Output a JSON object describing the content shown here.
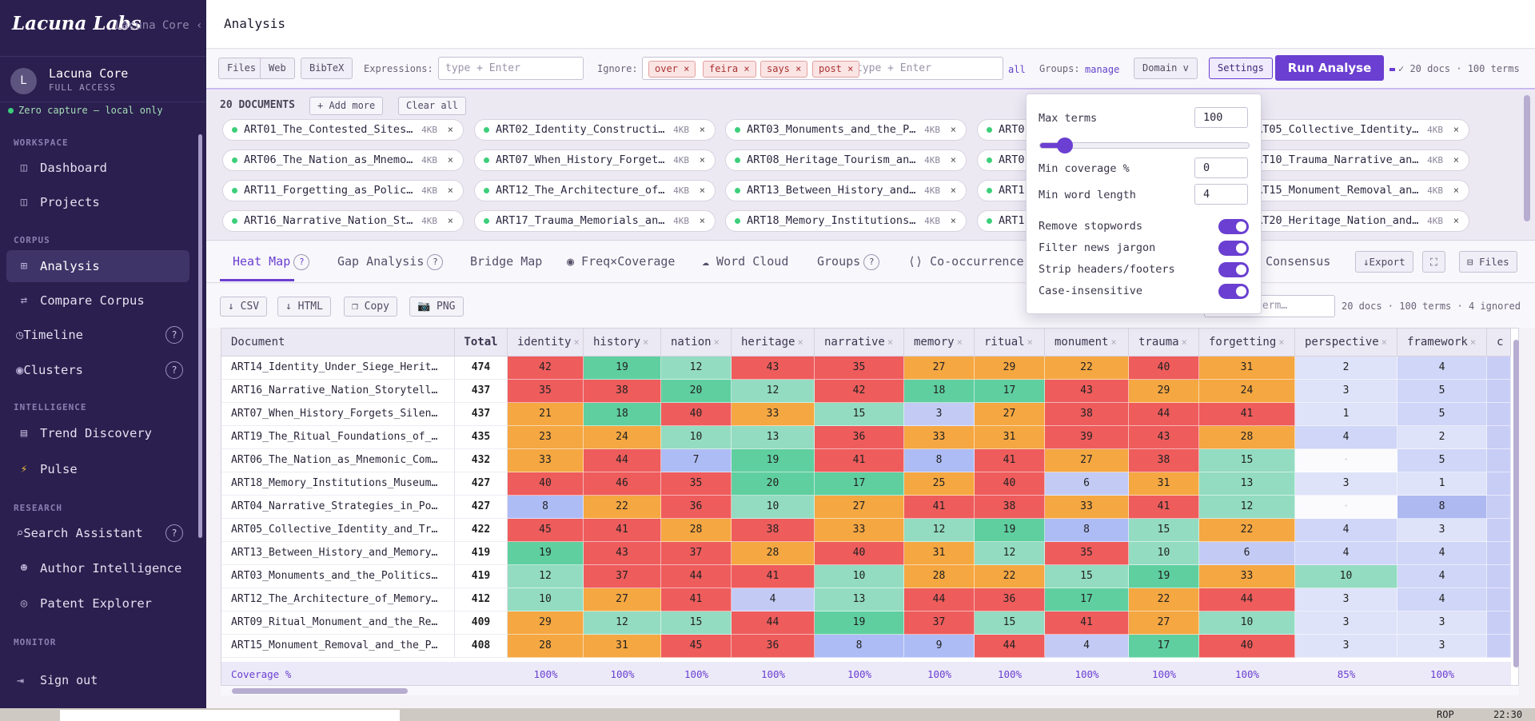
{
  "app": {
    "brand": "Lacuna Labs",
    "brand_sub": "Lacuna Core ‹",
    "user_name": "Lacuna Core",
    "user_initial": "L",
    "user_role": "FULL ACCESS",
    "privacy": "Zero capture — local only"
  },
  "sidebar": {
    "sections": [
      {
        "label": "WORKSPACE"
      },
      {
        "label": "CORPUS"
      },
      {
        "label": "INTELLIGENCE"
      },
      {
        "label": "RESEARCH"
      },
      {
        "label": "MONITOR"
      }
    ],
    "items": [
      {
        "label": "Dashboard",
        "icon": "layout-icon"
      },
      {
        "label": "Projects",
        "icon": "layout-icon"
      },
      {
        "label": "Analysis",
        "icon": "grid-icon"
      },
      {
        "label": "Compare Corpus",
        "icon": "swap-icon"
      },
      {
        "label": "Timeline",
        "icon": "clock-icon"
      },
      {
        "label": "Clusters",
        "icon": "cluster-icon"
      },
      {
        "label": "Trend Discovery",
        "icon": "chart-icon"
      },
      {
        "label": "Pulse",
        "icon": "bolt-icon"
      },
      {
        "label": "Search Assistant",
        "icon": "search-icon"
      },
      {
        "label": "Author Intelligence",
        "icon": "person-icon"
      },
      {
        "label": "Patent Explorer",
        "icon": "target-icon"
      }
    ],
    "signout": "Sign out",
    "help": "?"
  },
  "header": {
    "title": "Analysis"
  },
  "toolbar": {
    "files": "Files",
    "web": "Web",
    "bibtex": "BibTeX",
    "expressions_label": "Expressions:",
    "expressions_placeholder": "type + Enter",
    "ignore_label": "Ignore:",
    "ignore_chips": [
      "over ×",
      "feira ×",
      "says ×",
      "post ×"
    ],
    "ignore_placeholder": "type + Enter",
    "all": "all",
    "groups_label": "Groups:",
    "groups_link": "manage",
    "domain": "Domain v",
    "settings": "Settings",
    "run": "Run Analyse",
    "status": "✓ 20 docs · 100 terms"
  },
  "documents": {
    "count_label": "20 DOCUMENTS",
    "add_more": "+ Add more",
    "clear_all": "Clear all",
    "size": "4KB",
    "close": "×",
    "items": [
      "ART01_The_Contested_Sites…",
      "ART02_Identity_Constructi…",
      "ART03_Monuments_and_the_P…",
      "ART0",
      "ART05_Collective_Identity…",
      "ART06_The_Nation_as_Mnemo…",
      "ART07_When_History_Forget…",
      "ART08_Heritage_Tourism_an…",
      "ART0",
      "ART10_Trauma_Narrative_an…",
      "ART11_Forgetting_as_Polic…",
      "ART12_The_Architecture_of…",
      "ART13_Between_History_and…",
      "ART1",
      "ART15_Monument_Removal_an…",
      "ART16_Narrative_Nation_St…",
      "ART17_Trauma_Memorials_an…",
      "ART18_Memory_Institutions…",
      "ART1",
      "ART20_Heritage_Nation_and…"
    ]
  },
  "tabs": [
    {
      "label": "Heat Map",
      "help": "?"
    },
    {
      "label": "Gap Analysis",
      "help": "?"
    },
    {
      "label": "Bridge Map"
    },
    {
      "label": "◉ Freq×Coverage"
    },
    {
      "label": "☁ Word Cloud"
    },
    {
      "label": "Groups",
      "help": "?"
    },
    {
      "label": "⟨⟩ Co-occurrence"
    },
    {
      "label": "Consensus"
    }
  ],
  "tab_actions": {
    "export": "↓Export",
    "fullscreen": "⛶",
    "files": "⊟ Files"
  },
  "export_bar": {
    "csv": "↓ CSV",
    "html": "↓ HTML",
    "copy": "❐ Copy",
    "png": "📷 PNG",
    "search_placeholder": "term…",
    "summary": "20 docs · 100 terms · 4 ignored"
  },
  "settings_popup": {
    "max_terms_label": "Max terms",
    "max_terms": "100",
    "slider_fraction": 0.12,
    "min_coverage_label": "Min coverage %",
    "min_coverage": "0",
    "min_word_label": "Min word length",
    "min_word": "4",
    "toggles": [
      {
        "label": "Remove stopwords",
        "on": true
      },
      {
        "label": "Filter news jargon",
        "on": true
      },
      {
        "label": "Strip headers/footers",
        "on": true
      },
      {
        "label": "Case-insensitive",
        "on": true
      }
    ]
  },
  "heatmap": {
    "doc_header": "Document",
    "total_header": "Total",
    "coverage_label": "Coverage %",
    "remove": "×",
    "columns": [
      "identity",
      "history",
      "nation",
      "heritage",
      "narrative",
      "memory",
      "ritual",
      "monument",
      "trauma",
      "forgetting",
      "perspective",
      "framework",
      "c"
    ],
    "coverage": [
      "100%",
      "100%",
      "100%",
      "100%",
      "100%",
      "100%",
      "100%",
      "100%",
      "100%",
      "100%",
      "85%",
      "100%",
      ""
    ],
    "rows": [
      {
        "doc": "ART14_Identity_Under_Siege_Herit…",
        "total": "474",
        "v": [
          "42",
          "19",
          "12",
          "43",
          "35",
          "27",
          "29",
          "22",
          "40",
          "31",
          "2",
          "4",
          ""
        ]
      },
      {
        "doc": "ART16_Narrative_Nation_Storytell…",
        "total": "437",
        "v": [
          "35",
          "38",
          "20",
          "12",
          "42",
          "18",
          "17",
          "43",
          "29",
          "24",
          "3",
          "5",
          ""
        ]
      },
      {
        "doc": "ART07_When_History_Forgets_Silen…",
        "total": "437",
        "v": [
          "21",
          "18",
          "40",
          "33",
          "15",
          "3",
          "27",
          "38",
          "44",
          "41",
          "1",
          "5",
          ""
        ]
      },
      {
        "doc": "ART19_The_Ritual_Foundations_of_…",
        "total": "435",
        "v": [
          "23",
          "24",
          "10",
          "13",
          "36",
          "33",
          "31",
          "39",
          "43",
          "28",
          "4",
          "2",
          ""
        ]
      },
      {
        "doc": "ART06_The_Nation_as_Mnemonic_Com…",
        "total": "432",
        "v": [
          "33",
          "44",
          "7",
          "19",
          "41",
          "8",
          "41",
          "27",
          "38",
          "15",
          "·",
          "5",
          ""
        ]
      },
      {
        "doc": "ART18_Memory_Institutions_Museum…",
        "total": "427",
        "v": [
          "40",
          "46",
          "35",
          "20",
          "17",
          "25",
          "40",
          "6",
          "31",
          "13",
          "3",
          "1",
          ""
        ]
      },
      {
        "doc": "ART04_Narrative_Strategies_in_Po…",
        "total": "427",
        "v": [
          "8",
          "22",
          "36",
          "10",
          "27",
          "41",
          "38",
          "33",
          "41",
          "12",
          "·",
          "8",
          ""
        ]
      },
      {
        "doc": "ART05_Collective_Identity_and_Tr…",
        "total": "422",
        "v": [
          "45",
          "41",
          "28",
          "38",
          "33",
          "12",
          "19",
          "8",
          "15",
          "22",
          "4",
          "3",
          ""
        ]
      },
      {
        "doc": "ART13_Between_History_and_Memory…",
        "total": "419",
        "v": [
          "19",
          "43",
          "37",
          "28",
          "40",
          "31",
          "12",
          "35",
          "10",
          "6",
          "4",
          "4",
          ""
        ]
      },
      {
        "doc": "ART03_Monuments_and_the_Politics…",
        "total": "419",
        "v": [
          "12",
          "37",
          "44",
          "41",
          "10",
          "28",
          "22",
          "15",
          "19",
          "33",
          "10",
          "4",
          ""
        ]
      },
      {
        "doc": "ART12_The_Architecture_of_Memory…",
        "total": "412",
        "v": [
          "10",
          "27",
          "41",
          "4",
          "13",
          "44",
          "36",
          "17",
          "22",
          "44",
          "3",
          "4",
          ""
        ]
      },
      {
        "doc": "ART09_Ritual_Monument_and_the_Re…",
        "total": "409",
        "v": [
          "29",
          "12",
          "15",
          "44",
          "19",
          "37",
          "15",
          "41",
          "27",
          "10",
          "3",
          "3",
          ""
        ]
      },
      {
        "doc": "ART15_Monument_Removal_and_the_P…",
        "total": "408",
        "v": [
          "28",
          "31",
          "45",
          "36",
          "8",
          "9",
          "44",
          "4",
          "17",
          "40",
          "3",
          "3",
          ""
        ]
      }
    ],
    "colors": {
      "high": "#ee5c5c",
      "upper": "#f5a742",
      "mid": "#5fcfa0",
      "low": "#93dcc2",
      "vlow": "#c3cbf5",
      "min": "#eef0fb"
    }
  },
  "taskbar": {
    "a": "ROP",
    "b": "22:30"
  }
}
